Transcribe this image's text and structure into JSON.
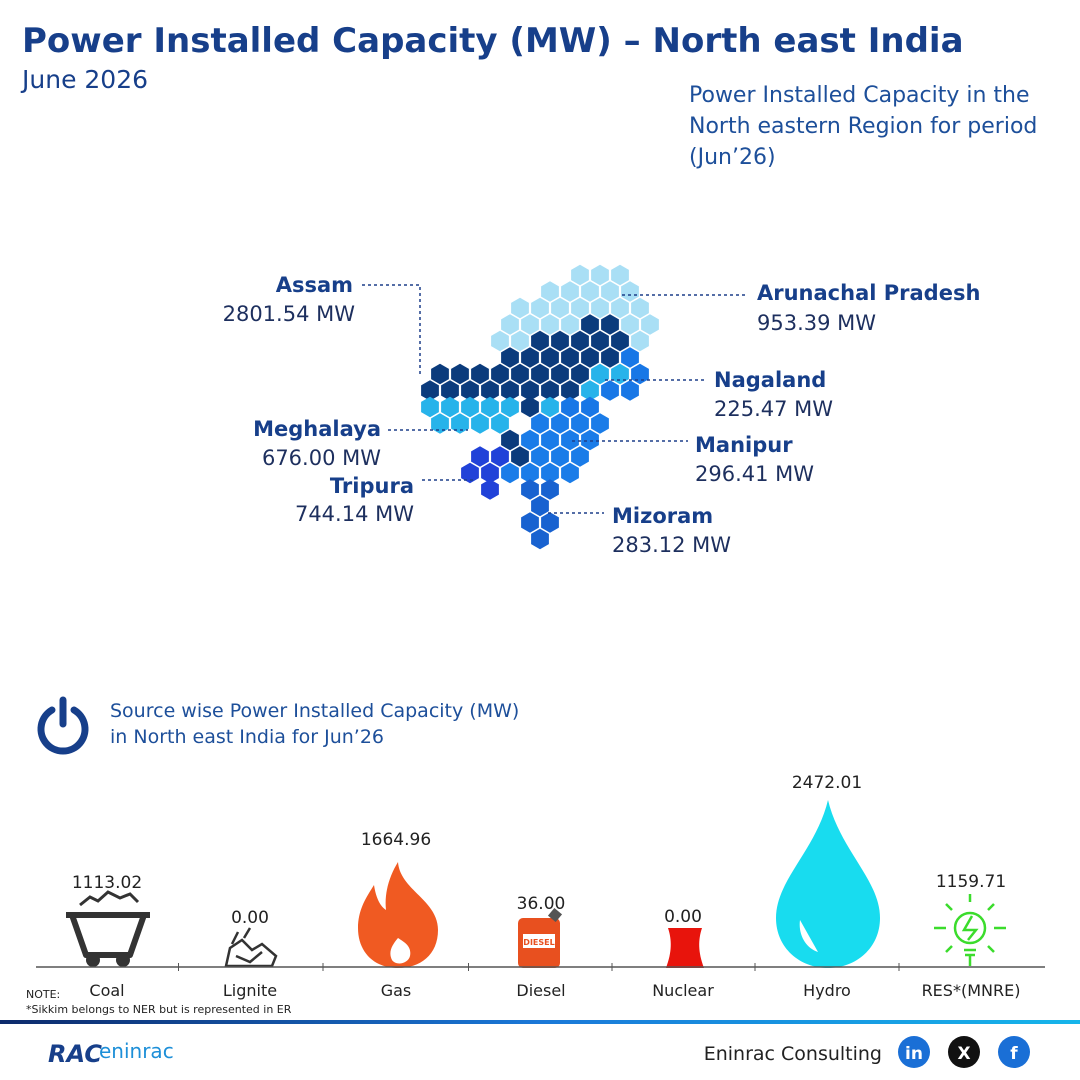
{
  "header": {
    "title": "Power Installed Capacity (MW) – North east India",
    "subtitle": "June 2026",
    "description": [
      "Power Installed Capacity in the",
      "North eastern Region for period",
      "(Jun’26)"
    ]
  },
  "states": [
    {
      "name": "Assam",
      "value": "2801.54 MW"
    },
    {
      "name": "Arunachal Pradesh",
      "value": "953.39 MW"
    },
    {
      "name": "Nagaland",
      "value": "225.47 MW"
    },
    {
      "name": "Meghalaya",
      "value": "676.00 MW"
    },
    {
      "name": "Manipur",
      "value": "296.41 MW"
    },
    {
      "name": "Tripura",
      "value": "744.14 MW"
    },
    {
      "name": "Mizoram",
      "value": "283.12 MW"
    }
  ],
  "sources": {
    "heading": [
      "Source wise Power Installed Capacity (MW)",
      "in North east India for Jun’26"
    ],
    "items": [
      {
        "name": "Coal",
        "value": "1113.02"
      },
      {
        "name": "Lignite",
        "value": "0.00"
      },
      {
        "name": "Gas",
        "value": "1664.96"
      },
      {
        "name": "Diesel",
        "value": "36.00",
        "icon_text": "DIESEL"
      },
      {
        "name": "Nuclear",
        "value": "0.00"
      },
      {
        "name": "Hydro",
        "value": "2472.01"
      },
      {
        "name": "RES*(MNRE)",
        "value": "1159.71"
      }
    ]
  },
  "note": {
    "label": "NOTE:",
    "text": "*Sikkim belongs to NER but is represented in ER"
  },
  "footer": {
    "logo": [
      "RAC",
      "eninrac"
    ],
    "company": "Eninrac Consulting",
    "social": [
      "in",
      "X",
      "f"
    ]
  }
}
